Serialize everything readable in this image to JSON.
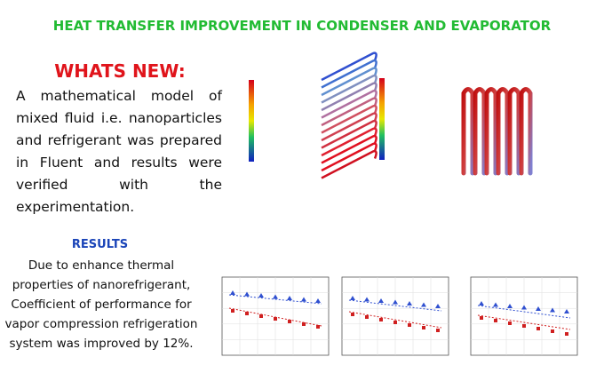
{
  "header": {
    "title": "HEAT TRANSFER IMPROVEMENT IN CONDENSER AND EVAPORATOR"
  },
  "whats_new": {
    "heading": "WHATS NEW:",
    "body": "A mathematical model of mixed fluid i.e. nanoparticles and refrigerant was prepared in Fluent and results were verified with the experimentation."
  },
  "results": {
    "heading": "RESULTS",
    "body": "Due to enhance thermal properties of nanorefrigerant, Coefficient of performance for vapor compression refrigeration system was improved by 12%."
  }
}
